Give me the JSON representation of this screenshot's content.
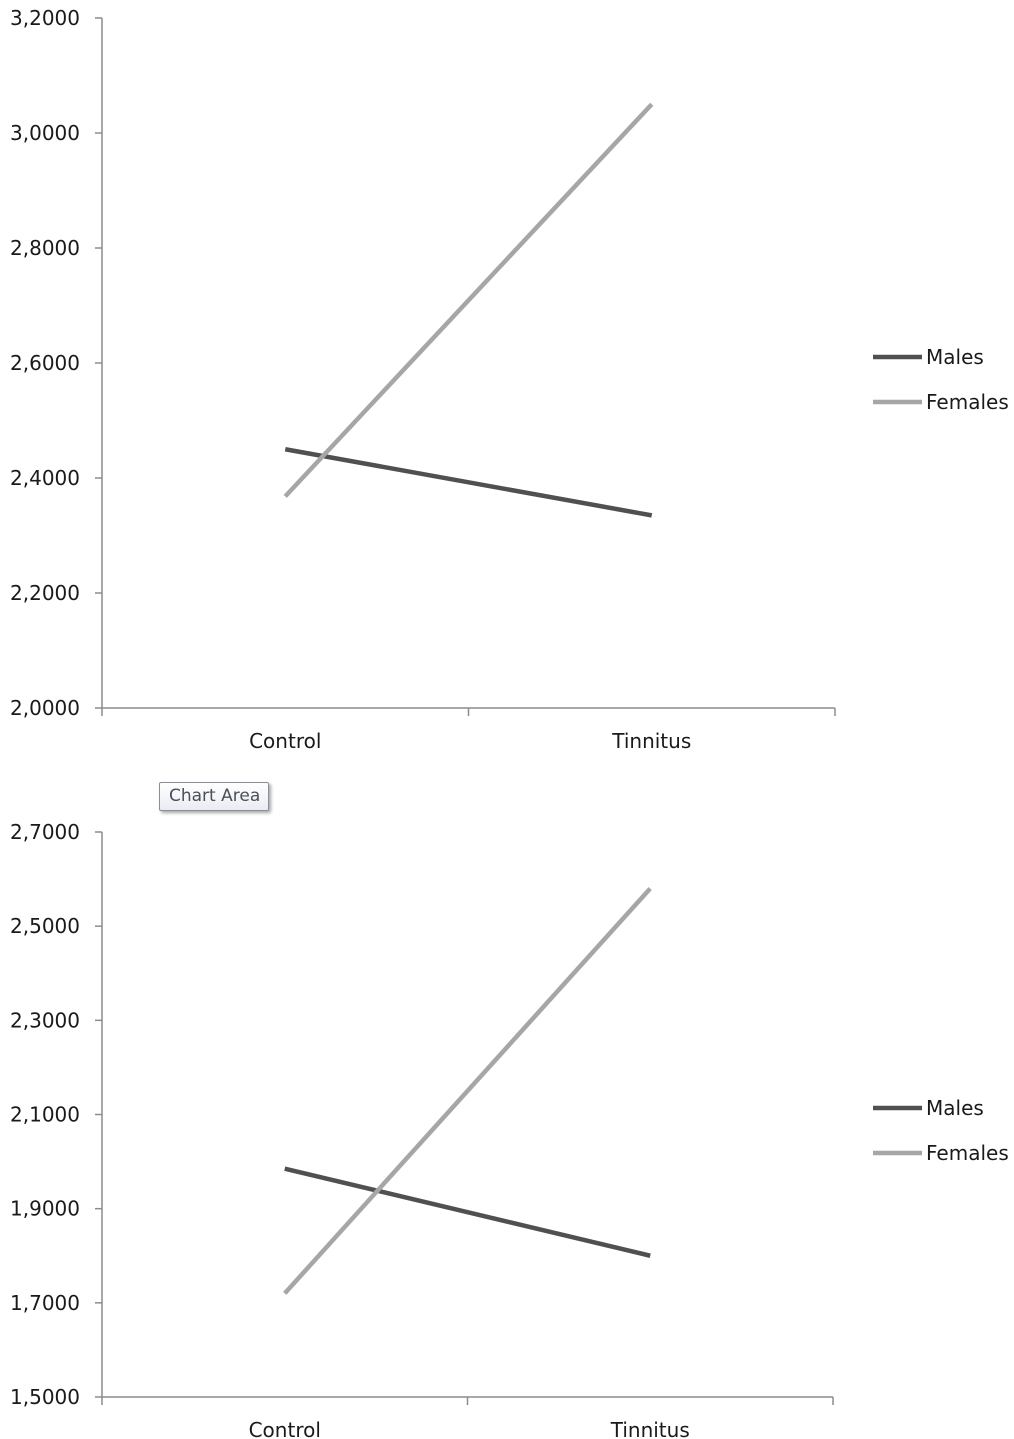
{
  "chart_data": [
    {
      "type": "line",
      "categories": [
        "Control",
        "Tinnitus"
      ],
      "ylim": [
        2.0,
        3.2
      ],
      "yticks": [
        "2,0000",
        "2,2000",
        "2,4000",
        "2,6000",
        "2,8000",
        "3,0000",
        "3,2000"
      ],
      "series": [
        {
          "name": "Males",
          "values": [
            2.45,
            2.335
          ],
          "color": "#505050"
        },
        {
          "name": "Females",
          "values": [
            2.368,
            3.05
          ],
          "color": "#a6a6a6"
        }
      ],
      "grid": false,
      "legend": "right"
    },
    {
      "type": "line",
      "categories": [
        "Control",
        "Tinnitus"
      ],
      "ylim": [
        1.5,
        2.7
      ],
      "yticks": [
        "1,5000",
        "1,7000",
        "1,9000",
        "2,1000",
        "2,3000",
        "2,5000",
        "2,7000"
      ],
      "series": [
        {
          "name": "Males",
          "values": [
            1.985,
            1.8
          ],
          "color": "#505050"
        },
        {
          "name": "Females",
          "values": [
            1.72,
            2.58
          ],
          "color": "#a6a6a6"
        }
      ],
      "grid": false,
      "legend": "right"
    }
  ],
  "tooltip": {
    "label": "Chart Area"
  }
}
